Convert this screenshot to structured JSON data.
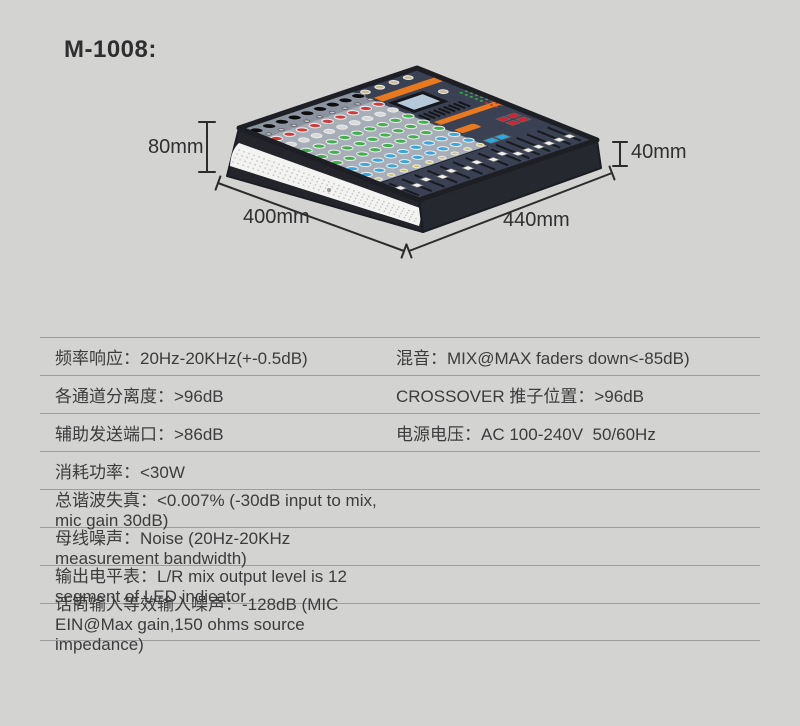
{
  "title": "M-1008:",
  "product": {
    "kind": "audio-mixer-console",
    "dimensions": {
      "height_back": "80mm",
      "height_front": "40mm",
      "depth": "400mm",
      "width": "440mm"
    }
  },
  "specs": {
    "rows": [
      {
        "left": "频率响应：20Hz-20KHz(+-0.5dB)",
        "right": "混音：MIX@MAX faders down<-85dB)"
      },
      {
        "left": "各通道分离度：>96dB",
        "right": "CROSSOVER 推子位置：>96dB"
      },
      {
        "left": "辅助发送端口：>86dB",
        "right": "电源电压：AC 100-240V  50/60Hz"
      },
      {
        "left": "消耗功率：<30W"
      },
      {
        "left": "总谐波失真：<0.007% (-30dB input to mix, mic gain 30dB)"
      },
      {
        "left": "母线噪声：Noise (20Hz-20KHz measurement bandwidth)"
      },
      {
        "left": "输出电平表：L/R mix output level is 12 segment of LED indicator"
      },
      {
        "left": "话筒输入等效输入噪声：-128dB (MIC EIN@Max gain,150 ohms source impedance)"
      }
    ]
  },
  "colors": {
    "background": "#d3d3d2",
    "text": "#3c3c3c",
    "table_line": "#9d9d9d",
    "chassis_dark": "#23252b",
    "panel_light": "#a7aeb8",
    "panel_navy": "#3a4152",
    "accent_orange": "#e8791e",
    "knob_red": "#cf3a3c",
    "knob_green": "#3fb04c",
    "knob_blue": "#38a8dc",
    "fader_red": "#d02535",
    "fader_blue": "#2aa9e0",
    "lcd": "#b5c9da"
  }
}
